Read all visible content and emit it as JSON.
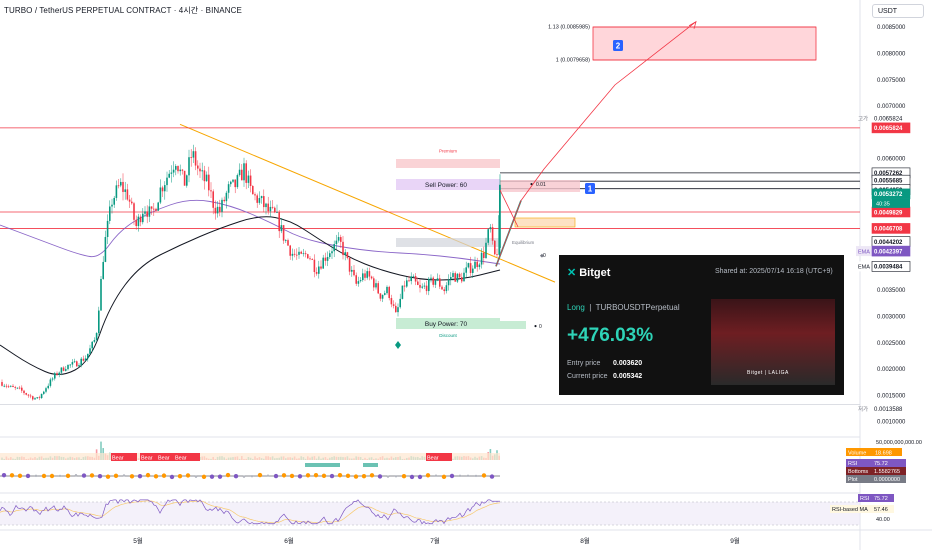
{
  "header": {
    "title": "TURBO / TetherUS PERPETUAL CONTRACT · 4시간 · BINANCE",
    "currency_button": "USDT"
  },
  "chart_data": {
    "type": "candlestick",
    "title": "TURBO / TetherUS PERPETUAL CONTRACT · 4시간 · BINANCE",
    "x_ticks": [
      "5월",
      "6월",
      "7월",
      "8월",
      "9월"
    ],
    "y_range": [
      0.001,
      0.0089
    ],
    "y_ticks": [
      "0.0085000",
      "0.0080000",
      "0.0075000",
      "0.0070000",
      "0.0060000",
      "0.0050000",
      "0.0035000",
      "0.0030000",
      "0.0025000",
      "0.0020000",
      "0.0015000",
      "0.0010000"
    ],
    "price_path": [
      [
        0,
        0.00175
      ],
      [
        10,
        0.00165
      ],
      [
        20,
        0.0016
      ],
      [
        30,
        0.00148
      ],
      [
        38,
        0.00142
      ],
      [
        46,
        0.00165
      ],
      [
        56,
        0.0019
      ],
      [
        66,
        0.00205
      ],
      [
        76,
        0.0021
      ],
      [
        86,
        0.00222
      ],
      [
        96,
        0.0026
      ],
      [
        104,
        0.0043
      ],
      [
        112,
        0.0052
      ],
      [
        120,
        0.0055
      ],
      [
        128,
        0.0053
      ],
      [
        136,
        0.0047
      ],
      [
        144,
        0.0051
      ],
      [
        152,
        0.0049
      ],
      [
        160,
        0.0054
      ],
      [
        168,
        0.0057
      ],
      [
        176,
        0.006
      ],
      [
        184,
        0.0055
      ],
      [
        192,
        0.0061
      ],
      [
        200,
        0.0057
      ],
      [
        208,
        0.0055
      ],
      [
        214,
        0.0051
      ],
      [
        220,
        0.005
      ],
      [
        228,
        0.0054
      ],
      [
        236,
        0.0055
      ],
      [
        244,
        0.0058
      ],
      [
        252,
        0.0053
      ],
      [
        260,
        0.0052
      ],
      [
        268,
        0.005
      ],
      [
        276,
        0.0049
      ],
      [
        284,
        0.0045
      ],
      [
        292,
        0.0042
      ],
      [
        300,
        0.0041
      ],
      [
        308,
        0.0042
      ],
      [
        316,
        0.0039
      ],
      [
        324,
        0.0041
      ],
      [
        332,
        0.0043
      ],
      [
        340,
        0.0044
      ],
      [
        348,
        0.004
      ],
      [
        356,
        0.0036
      ],
      [
        364,
        0.0038
      ],
      [
        372,
        0.0037
      ],
      [
        380,
        0.0034
      ],
      [
        388,
        0.0035
      ],
      [
        396,
        0.003
      ],
      [
        404,
        0.0036
      ],
      [
        412,
        0.0037
      ],
      [
        420,
        0.0035
      ],
      [
        428,
        0.0036
      ],
      [
        436,
        0.0037
      ],
      [
        444,
        0.0035
      ],
      [
        452,
        0.0038
      ],
      [
        460,
        0.0037
      ],
      [
        468,
        0.0039
      ],
      [
        476,
        0.004
      ],
      [
        484,
        0.0042
      ],
      [
        490,
        0.0047
      ],
      [
        494,
        0.0041
      ],
      [
        498,
        0.0043
      ],
      [
        501,
        0.0055
      ]
    ],
    "projection_path": [
      [
        496,
        0.00395
      ],
      [
        521,
        0.0052
      ],
      [
        544,
        0.0058
      ],
      [
        615,
        0.0074
      ],
      [
        696,
        0.0086
      ]
    ],
    "levels": [
      {
        "label": "0.0065824",
        "value": 0.0065824,
        "color": "#f23645"
      },
      {
        "label": "0.0057262",
        "value": 0.0057262,
        "color": "#131722"
      },
      {
        "label": "0.0055685",
        "value": 0.0055685,
        "color": "#131722"
      },
      {
        "label": "0.0054259",
        "value": 0.0054259,
        "color": "#131722"
      },
      {
        "label": "0.0049829",
        "value": 0.0049829,
        "color": "#f23645"
      },
      {
        "label": "0.0046708",
        "value": 0.0046708,
        "color": "#f23645"
      },
      {
        "label": "0.0044202",
        "value": 0.0044202,
        "color": "#131722"
      }
    ],
    "price_badges": [
      {
        "label": "0.0053272",
        "sub": "40:35",
        "value": 0.0053272,
        "color": "#089981"
      },
      {
        "label": "0.0042397",
        "prefix": "EMA",
        "value": 0.0042397,
        "color": "#7e57c2"
      },
      {
        "label": "0.0039484",
        "prefix": "EMA",
        "value": 0.0039484,
        "color": "#131722"
      }
    ],
    "high_label": {
      "prefix": "고가",
      "value_text": "0.0065824",
      "value": 0.0065824
    },
    "low_label": {
      "prefix": "저가",
      "value_text": "0.0013588",
      "value": 0.0013588
    },
    "fib_labels": [
      {
        "text": "1.13 (0.0085985)",
        "value": 0.0085985
      },
      {
        "text": "1 (0.0079658)",
        "value": 0.0079658
      }
    ],
    "zones": {
      "premium": "Premium",
      "discount": "Discount",
      "equilibrium": "Equilibrium",
      "sell_power": "Sell Power: 60",
      "buy_power": "Buy Power: 70",
      "sell_value": "0.01",
      "buy_value": "0",
      "equilibrium_value": "0"
    },
    "markers": [
      "1",
      "2"
    ],
    "volume": {
      "axis_label": "50,000,000,000.00",
      "badge_label": "Volume",
      "badge_value": "18.698",
      "bear_labels": [
        "Bear",
        "Bear",
        "Bear",
        "Bear",
        "Bear"
      ]
    },
    "indicator_badges": [
      {
        "name": "RSI",
        "value": "75.72"
      },
      {
        "name": "Bottoms",
        "value": "1.5582765"
      },
      {
        "name": "Plot",
        "value": "0.0000000"
      }
    ],
    "rsi": {
      "badge_name": "RSI",
      "badge_value": "75.72",
      "ma_name": "RSI-based MA",
      "ma_value": "57.46",
      "axis_value": "40.00"
    }
  },
  "card": {
    "brand": "Bitget",
    "shared_at": "Shared at: 2025/07/14 16:18 (UTC+9)",
    "direction": "Long",
    "symbol": "TURBOUSDTPerpetual",
    "pnl": "+476.03%",
    "entry_label": "Entry price",
    "entry_value": "0.003620",
    "current_label": "Current price",
    "current_value": "0.005342",
    "partner": "Bitget | LALIGA"
  },
  "colors": {
    "up": "#089981",
    "down": "#f23645",
    "ema_fast": "#7e57c2",
    "ema_slow": "#131722",
    "trendline": "#f7a600",
    "projection": "#f23645",
    "target_zone": "#ffd6da"
  }
}
